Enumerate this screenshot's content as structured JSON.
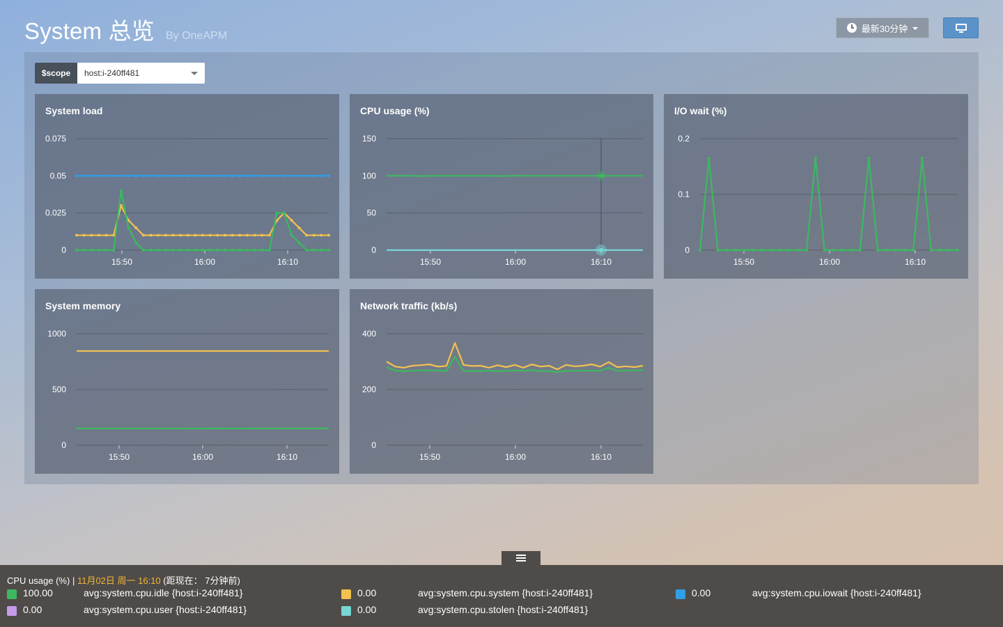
{
  "header": {
    "title": "System 总览",
    "subtitle": "By OneAPM"
  },
  "toolbar": {
    "time_range": "最新30分钟",
    "time_icon": "clock-icon",
    "tv_icon": "monitor-icon"
  },
  "scope": {
    "label": "$scope",
    "value": "host:i-240ff481"
  },
  "colors": {
    "green": "#3cb95f",
    "yellow": "#f2c14e",
    "blue": "#2f9fe6",
    "cyan": "#78d6d6",
    "purple": "#c59bea"
  },
  "chart_data": [
    {
      "title": "System load",
      "type": "line",
      "x_ticks": [
        "15:50",
        "16:00",
        "16:10"
      ],
      "y_ticks": [
        "0.075",
        "0.05",
        "0.025",
        "0"
      ],
      "ylim": [
        0,
        0.075
      ],
      "series": [
        {
          "color": "#2f9fe6",
          "values": [
            0.05,
            0.05,
            0.05,
            0.05,
            0.05,
            0.05,
            0.05,
            0.05,
            0.05,
            0.05,
            0.05,
            0.05,
            0.05,
            0.05,
            0.05,
            0.05,
            0.05,
            0.05,
            0.05,
            0.05,
            0.05,
            0.05,
            0.05,
            0.05,
            0.05,
            0.05,
            0.05,
            0.05,
            0.05,
            0.05,
            0.05,
            0.05,
            0.05,
            0.05,
            0.05
          ]
        },
        {
          "color": "#f2c14e",
          "values": [
            0.01,
            0.01,
            0.01,
            0.01,
            0.01,
            0.01,
            0.03,
            0.02,
            0.015,
            0.01,
            0.01,
            0.01,
            0.01,
            0.01,
            0.01,
            0.01,
            0.01,
            0.01,
            0.01,
            0.01,
            0.01,
            0.01,
            0.01,
            0.01,
            0.01,
            0.01,
            0.01,
            0.02,
            0.025,
            0.02,
            0.015,
            0.01,
            0.01,
            0.01,
            0.01
          ]
        },
        {
          "color": "#3cb95f",
          "values": [
            0,
            0,
            0,
            0,
            0,
            0,
            0.04,
            0.015,
            0.005,
            0,
            0,
            0,
            0,
            0,
            0,
            0,
            0,
            0,
            0,
            0,
            0,
            0,
            0,
            0,
            0,
            0,
            0,
            0.025,
            0.025,
            0.01,
            0.005,
            0,
            0,
            0,
            0
          ]
        }
      ]
    },
    {
      "title": "CPU usage (%)",
      "type": "line",
      "x_ticks": [
        "15:50",
        "16:00",
        "16:10"
      ],
      "y_ticks": [
        "150",
        "100",
        "50",
        "0"
      ],
      "ylim": [
        0,
        150
      ],
      "series": [
        {
          "color": "#3cb95f",
          "values": [
            100,
            100,
            100,
            100,
            99.6,
            100,
            100,
            100,
            100,
            100,
            100,
            100,
            100,
            99.6,
            100,
            100,
            100,
            100,
            100,
            100,
            100,
            100,
            100,
            100,
            100,
            100,
            100,
            100,
            100,
            100
          ]
        },
        {
          "color": "#78d6d6",
          "values": [
            0,
            0,
            0,
            0,
            0,
            0,
            0,
            0,
            0,
            0,
            0,
            0,
            0,
            0,
            0,
            0,
            0,
            0,
            0,
            0,
            0,
            0,
            0,
            0,
            0,
            0,
            0,
            0,
            0,
            0
          ]
        }
      ]
    },
    {
      "title": "I/O wait (%)",
      "type": "line",
      "x_ticks": [
        "15:50",
        "16:00",
        "16:10"
      ],
      "y_ticks": [
        "0.2",
        "0.1",
        "0"
      ],
      "ylim": [
        0,
        0.2
      ],
      "series": [
        {
          "color": "#3cb95f",
          "values": [
            0,
            0.165,
            0,
            0,
            0,
            0,
            0,
            0,
            0,
            0,
            0,
            0,
            0,
            0.165,
            0,
            0,
            0,
            0,
            0,
            0.165,
            0,
            0,
            0,
            0,
            0,
            0.165,
            0,
            0,
            0,
            0
          ]
        }
      ]
    },
    {
      "title": "System memory",
      "type": "line",
      "x_ticks": [
        "15:50",
        "16:00",
        "16:10"
      ],
      "y_ticks": [
        "1000",
        "500",
        "0"
      ],
      "ylim": [
        0,
        1000
      ],
      "series": [
        {
          "color": "#f2c14e",
          "values": [
            845,
            845,
            845,
            845,
            845,
            845,
            845,
            845,
            845,
            845
          ]
        },
        {
          "color": "#3cb95f",
          "values": [
            150,
            150,
            150,
            150,
            150,
            150,
            150,
            150,
            150,
            150
          ]
        }
      ]
    },
    {
      "title": "Network traffic (kb/s)",
      "type": "line",
      "x_ticks": [
        "15:50",
        "16:00",
        "16:10"
      ],
      "y_ticks": [
        "400",
        "200",
        "0"
      ],
      "ylim": [
        0,
        400
      ],
      "series": [
        {
          "color": "#f2c14e",
          "values": [
            300,
            282,
            278,
            285,
            287,
            290,
            282,
            284,
            367,
            288,
            284,
            285,
            278,
            287,
            280,
            288,
            278,
            290,
            282,
            285,
            272,
            288,
            283,
            285,
            290,
            282,
            298,
            280,
            283,
            280,
            285
          ]
        },
        {
          "color": "#3cb95f",
          "values": [
            280,
            268,
            265,
            267,
            268,
            268,
            268,
            266,
            318,
            266,
            266,
            266,
            268,
            265,
            267,
            268,
            267,
            269,
            266,
            266,
            262,
            267,
            267,
            267,
            268,
            267,
            278,
            267,
            268,
            268,
            269
          ]
        }
      ]
    }
  ],
  "legend": {
    "chart": "CPU usage (%)",
    "separator": "|",
    "timestamp": "11月02日 周一 16:10",
    "relative": "(距现在：  7分钟前)",
    "items": [
      {
        "color": "#3cb95f",
        "value": "100.00",
        "name": "avg:system.cpu.idle  {host:i-240ff481}"
      },
      {
        "color": "#f2c14e",
        "value": "0.00",
        "name": "avg:system.cpu.system  {host:i-240ff481}"
      },
      {
        "color": "#2f9fe6",
        "value": "0.00",
        "name": "avg:system.cpu.iowait  {host:i-240ff481}"
      },
      {
        "color": "#c59bea",
        "value": "0.00",
        "name": "avg:system.cpu.user  {host:i-240ff481}"
      },
      {
        "color": "#78d6d6",
        "value": "0.00",
        "name": "avg:system.cpu.stolen  {host:i-240ff481}"
      }
    ]
  }
}
